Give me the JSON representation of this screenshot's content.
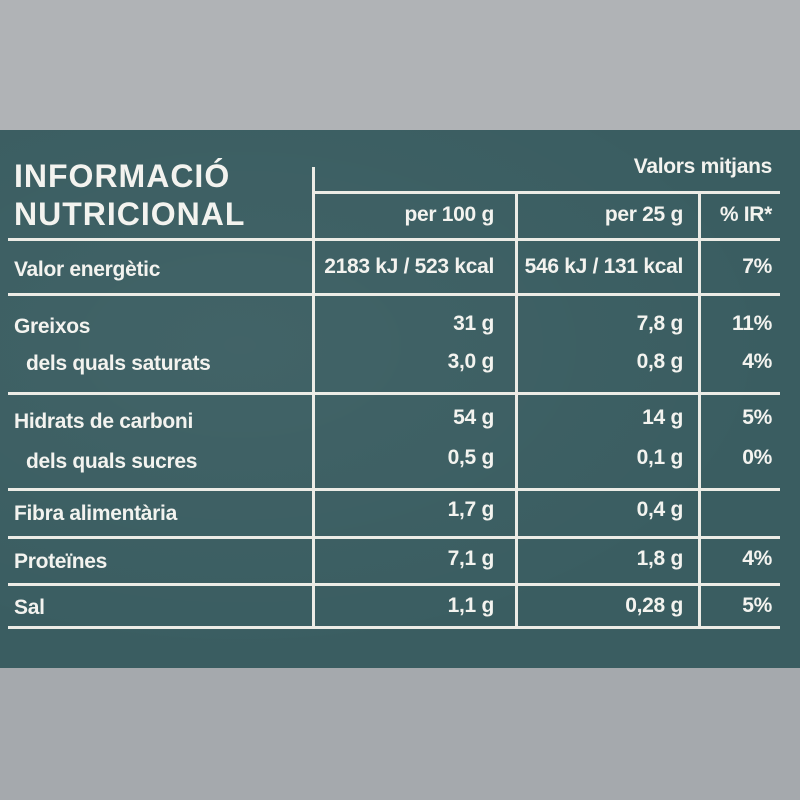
{
  "title": {
    "line1": "INFORMACIÓ",
    "line2": "NUTRICIONAL"
  },
  "header": {
    "group_label": "Valors mitjans",
    "col_per100": "per 100 g",
    "col_per25": "per 25 g",
    "col_ir": "% IR*"
  },
  "rows": [
    {
      "label": "Valor energètic",
      "per100": "2183 kJ / 523 kcal",
      "per25": "546 kJ / 131 kcal",
      "ir": "7%"
    },
    {
      "label": "Greixos",
      "per100": "31 g",
      "per25": "7,8 g",
      "ir": "11%"
    },
    {
      "label": "dels quals saturats",
      "per100": "3,0 g",
      "per25": "0,8 g",
      "ir": "4%"
    },
    {
      "label": "Hidrats de carboni",
      "per100": "54 g",
      "per25": "14 g",
      "ir": "5%"
    },
    {
      "label": "dels quals sucres",
      "per100": "0,5 g",
      "per25": "0,1 g",
      "ir": "0%"
    },
    {
      "label": "Fibra alimentària",
      "per100": "1,7 g",
      "per25": "0,4 g",
      "ir": ""
    },
    {
      "label": "Proteïnes",
      "per100": "7,1 g",
      "per25": "1,8 g",
      "ir": "4%"
    },
    {
      "label": "Sal",
      "per100": "1,1 g",
      "per25": "0,28 g",
      "ir": "5%"
    }
  ],
  "colors": {
    "panel": "#3a5d61",
    "text": "#f3f3ef"
  }
}
